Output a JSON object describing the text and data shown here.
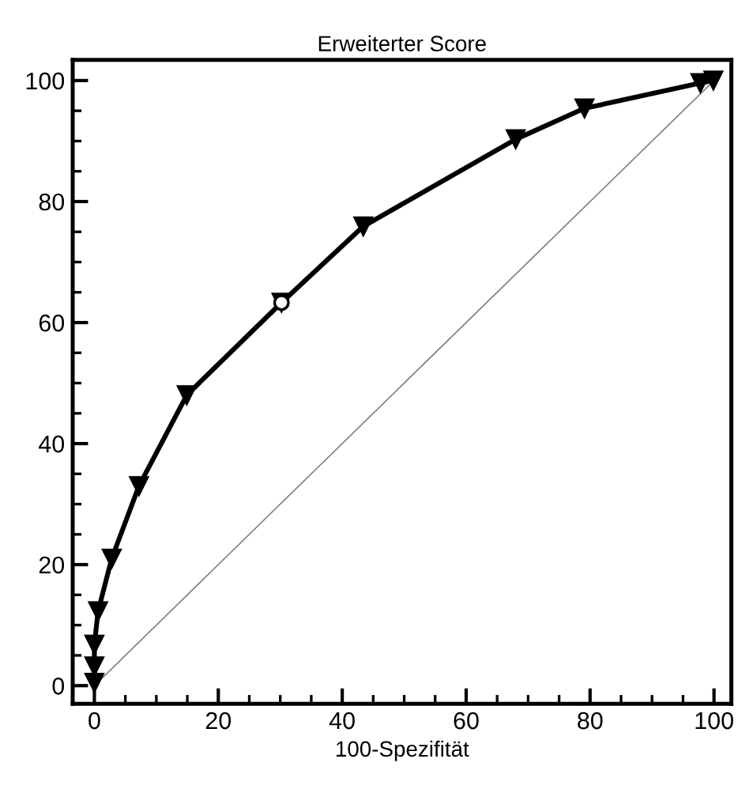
{
  "chart_data": {
    "type": "line",
    "title": "Erweiterter Score",
    "xlabel": "100-Spezifität",
    "xlim": [
      -3.5,
      102.8
    ],
    "ylim": [
      -3,
      103.4
    ],
    "xticks": [
      0,
      20,
      40,
      60,
      80,
      100
    ],
    "yticks": [
      0,
      20,
      40,
      60,
      80,
      100
    ],
    "grid": false,
    "legend": false,
    "series": [
      {
        "color": "#000000",
        "marker": "triangle",
        "x": [
          0,
          0,
          0,
          0.6,
          2.8,
          7.2,
          14.9,
          30.2,
          43.4,
          68,
          79.1,
          97.8,
          99.9
        ],
        "values": [
          0.5,
          3.2,
          6.8,
          12.3,
          21,
          33,
          48,
          63.3,
          75.9,
          90.3,
          95.4,
          99.6,
          100
        ]
      },
      {
        "type": "scatter",
        "color": "#000000",
        "marker": "circle",
        "x": [
          30.2
        ],
        "values": [
          63.3
        ]
      },
      {
        "type": "line",
        "color": "#808080",
        "marker": "none",
        "x": [
          0,
          100
        ],
        "values": [
          0,
          100
        ]
      }
    ]
  }
}
